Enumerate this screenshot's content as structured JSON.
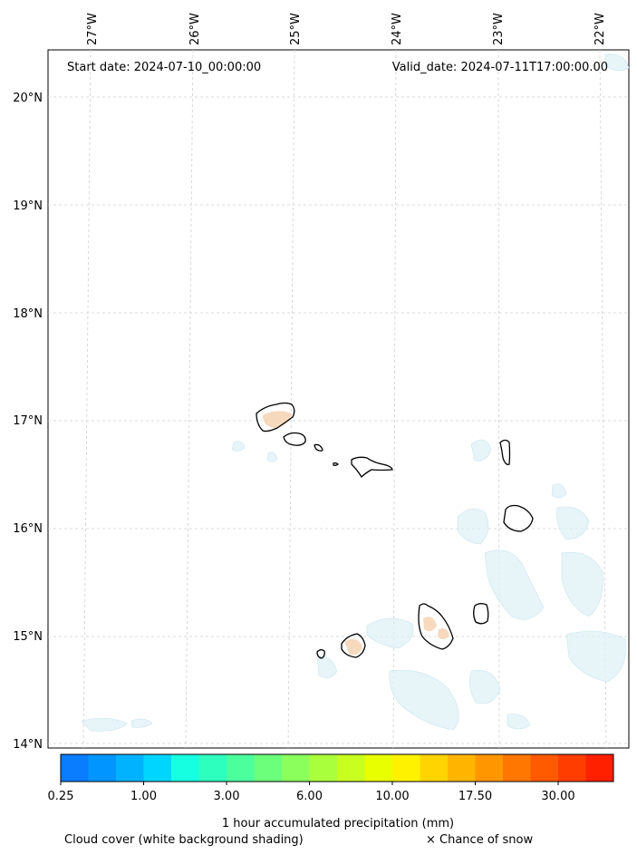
{
  "map": {
    "start_label": "Start date: 2024-07-10_00:00:00",
    "valid_label": "Valid_date: 2024-07-11T17:00:00.00",
    "lon_labels": [
      "27°W",
      "26°W",
      "25°W",
      "24°W",
      "23°W",
      "22°W"
    ],
    "lat_labels": [
      "20°N",
      "19°N",
      "18°N",
      "17°N",
      "16°N",
      "15°N",
      "14°N"
    ],
    "graticule": "dashed",
    "coastline_color": "#000000",
    "cloud_shading_color": "#dff0f6",
    "precip_shading_color": "#f3c7a5"
  },
  "colorbar": {
    "title": "1 hour accumulated precipitation (mm)",
    "tick_labels": [
      "0.25",
      "1.00",
      "3.00",
      "6.00",
      "10.00",
      "17.50",
      "30.00"
    ],
    "colors": [
      "#0a7dff",
      "#0196ff",
      "#00b2ff",
      "#00d5ff",
      "#16ffe1",
      "#2dffbf",
      "#4cff9d",
      "#6cff7c",
      "#8bff5c",
      "#aaff3d",
      "#c9ff1f",
      "#e8ff00",
      "#fff200",
      "#ffd400",
      "#ffb500",
      "#ff9600",
      "#ff7600",
      "#ff5a00",
      "#ff3d00",
      "#ff2000"
    ]
  },
  "footer": {
    "cloud_note": "Cloud cover (white background shading)",
    "snow_note": "× Chance of snow"
  }
}
